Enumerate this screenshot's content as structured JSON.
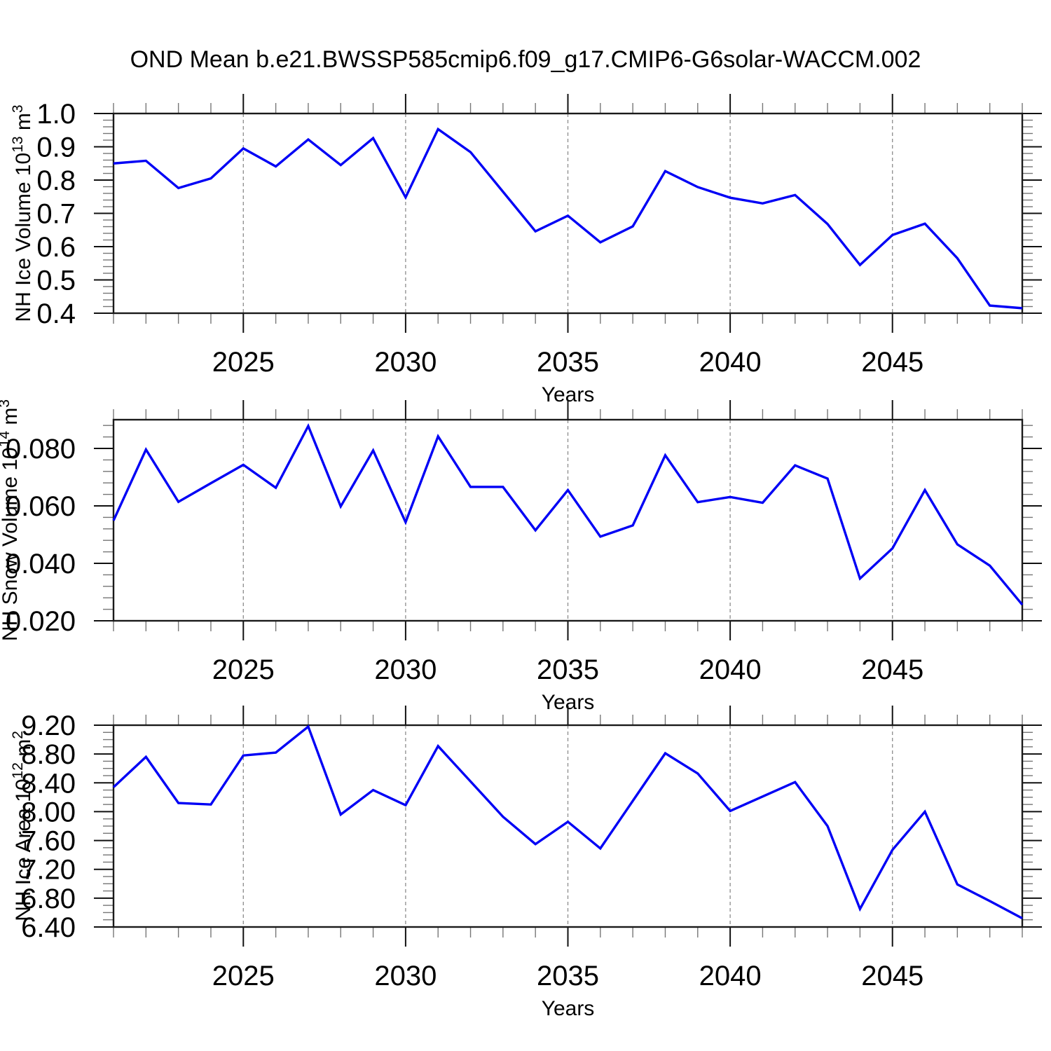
{
  "title": "OND Mean b.e21.BWSSP585cmip6.f09_g17.CMIP6-G6solar-WACCM.002",
  "colors": {
    "line": "#0000f5",
    "grid": "#8c8c8c",
    "axis": "#1a1a1a",
    "background": "#ffffff"
  },
  "chart_data": [
    {
      "type": "line",
      "panel": 1,
      "ylabel": "NH Ice Volume 10^13 m^3",
      "ylabel_parts": [
        [
          "t",
          "NH Ice Volume 10"
        ],
        [
          "sup",
          "13"
        ],
        [
          "t",
          " m"
        ],
        [
          "sup",
          "3"
        ]
      ],
      "xlabel": "Years",
      "xlim": [
        2021,
        2049
      ],
      "ylim": [
        0.4,
        1.0
      ],
      "ytick_values": [
        0.4,
        0.5,
        0.6,
        0.7,
        0.8,
        0.9,
        1.0
      ],
      "ytick_labels": [
        "0.4",
        "0.5",
        "0.6",
        "0.7",
        "0.8",
        "0.9",
        "1.0"
      ],
      "ytick_minor_step": 0.02,
      "xtick_values": [
        2025,
        2030,
        2035,
        2040,
        2045
      ],
      "xtick_labels": [
        "2025",
        "2030",
        "2035",
        "2040",
        "2045"
      ],
      "grid": "dashed vertical at major x ticks",
      "x": [
        2021,
        2022,
        2023,
        2024,
        2025,
        2026,
        2027,
        2028,
        2029,
        2030,
        2031,
        2032,
        2033,
        2034,
        2035,
        2036,
        2037,
        2038,
        2039,
        2040,
        2041,
        2042,
        2043,
        2044,
        2045,
        2046,
        2047,
        2048,
        2049
      ],
      "values": [
        0.85,
        0.858,
        0.776,
        0.805,
        0.895,
        0.841,
        0.922,
        0.845,
        0.926,
        0.748,
        0.953,
        0.884,
        0.765,
        0.646,
        0.693,
        0.613,
        0.661,
        0.827,
        0.779,
        0.747,
        0.73,
        0.755,
        0.668,
        0.545,
        0.635,
        0.669,
        0.565,
        0.423,
        0.415
      ]
    },
    {
      "type": "line",
      "panel": 2,
      "ylabel": "NH Snow Volume 10^14 m^3",
      "ylabel_parts": [
        [
          "t",
          "NH Snow Volume 10"
        ],
        [
          "sup",
          "14"
        ],
        [
          "t",
          " m"
        ],
        [
          "sup",
          "3"
        ]
      ],
      "ylabel_note": "partially clipped at left image edge",
      "xlabel": "Years",
      "xlim": [
        2021,
        2049
      ],
      "ylim": [
        0.02,
        0.09
      ],
      "ytick_values": [
        0.02,
        0.04,
        0.06,
        0.08
      ],
      "ytick_labels": [
        "0.020",
        "0.040",
        "0.060",
        "0.080"
      ],
      "ytick_minor_step": 0.004,
      "xtick_values": [
        2025,
        2030,
        2035,
        2040,
        2045
      ],
      "xtick_labels": [
        "2025",
        "2030",
        "2035",
        "2040",
        "2045"
      ],
      "grid": "dashed vertical at major x ticks",
      "x": [
        2021,
        2022,
        2023,
        2024,
        2025,
        2026,
        2027,
        2028,
        2029,
        2030,
        2031,
        2032,
        2033,
        2034,
        2035,
        2036,
        2037,
        2038,
        2039,
        2040,
        2041,
        2042,
        2043,
        2044,
        2045,
        2046,
        2047,
        2048,
        2049
      ],
      "values": [
        0.0549,
        0.0796,
        0.0614,
        0.0679,
        0.0743,
        0.0663,
        0.0878,
        0.0598,
        0.0793,
        0.0543,
        0.0842,
        0.0666,
        0.0666,
        0.0515,
        0.0655,
        0.0493,
        0.0532,
        0.0776,
        0.0613,
        0.0631,
        0.0611,
        0.0741,
        0.0695,
        0.0347,
        0.0452,
        0.0655,
        0.0466,
        0.0392,
        0.0256
      ]
    },
    {
      "type": "line",
      "panel": 3,
      "ylabel": "NH Ice Area 10^12 m^2",
      "ylabel_parts": [
        [
          "t",
          "NH Ice Area 10"
        ],
        [
          "sup",
          "12"
        ],
        [
          "t",
          " m"
        ],
        [
          "sup",
          "2"
        ]
      ],
      "xlabel": "Years",
      "xlim": [
        2021,
        2049
      ],
      "ylim": [
        6.4,
        9.2
      ],
      "ytick_values": [
        6.4,
        6.8,
        7.2,
        7.6,
        8.0,
        8.4,
        8.8,
        9.2
      ],
      "ytick_labels": [
        "6.40",
        "6.80",
        "7.20",
        "7.60",
        "8.00",
        "8.40",
        "8.80",
        "9.20"
      ],
      "ytick_minor_step": 0.1,
      "xtick_values": [
        2025,
        2030,
        2035,
        2040,
        2045
      ],
      "xtick_labels": [
        "2025",
        "2030",
        "2035",
        "2040",
        "2045"
      ],
      "grid": "dashed vertical at major x ticks",
      "x": [
        2021,
        2022,
        2023,
        2024,
        2025,
        2026,
        2027,
        2028,
        2029,
        2030,
        2031,
        2032,
        2033,
        2034,
        2035,
        2036,
        2037,
        2038,
        2039,
        2040,
        2041,
        2042,
        2043,
        2044,
        2045,
        2046,
        2047,
        2048,
        2049
      ],
      "values": [
        8.34,
        8.76,
        8.12,
        8.1,
        8.78,
        8.82,
        9.18,
        7.96,
        8.3,
        8.09,
        8.91,
        8.42,
        7.93,
        7.55,
        7.86,
        7.49,
        8.15,
        8.81,
        8.53,
        8.01,
        8.21,
        8.41,
        7.8,
        6.65,
        7.47,
        8.0,
        6.99,
        6.76,
        6.52
      ]
    }
  ]
}
